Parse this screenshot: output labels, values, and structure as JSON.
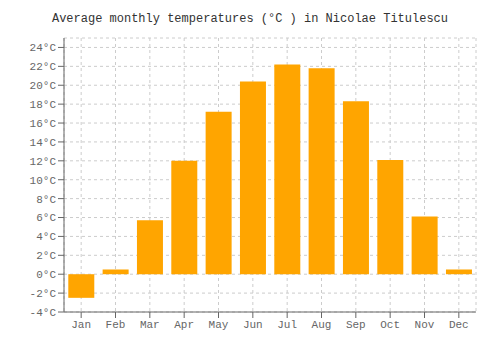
{
  "chart_data": {
    "type": "bar",
    "title": "Average monthly temperatures (°C ) in Nicolae Titulescu",
    "categories": [
      "Jan",
      "Feb",
      "Mar",
      "Apr",
      "May",
      "Jun",
      "Jul",
      "Aug",
      "Sep",
      "Oct",
      "Nov",
      "Dec"
    ],
    "values": [
      -2.5,
      0.5,
      5.7,
      12.0,
      17.2,
      20.4,
      22.2,
      21.8,
      18.3,
      12.1,
      6.1,
      0.5
    ],
    "color": "#FFA500",
    "ylim": [
      -4,
      25
    ],
    "yticks": [
      {
        "value": -4,
        "label": "-4°C"
      },
      {
        "value": -2,
        "label": "-2°C"
      },
      {
        "value": 0,
        "label": "0°C"
      },
      {
        "value": 2,
        "label": "2°C"
      },
      {
        "value": 4,
        "label": "4°C"
      },
      {
        "value": 6,
        "label": "6°C"
      },
      {
        "value": 8,
        "label": "8°C"
      },
      {
        "value": 10,
        "label": "10°C"
      },
      {
        "value": 12,
        "label": "12°C"
      },
      {
        "value": 14,
        "label": "14°C"
      },
      {
        "value": 16,
        "label": "16°C"
      },
      {
        "value": 18,
        "label": "18°C"
      },
      {
        "value": 20,
        "label": "20°C"
      },
      {
        "value": 22,
        "label": "22°C"
      },
      {
        "value": 24,
        "label": "24°C"
      }
    ],
    "grid": true
  }
}
